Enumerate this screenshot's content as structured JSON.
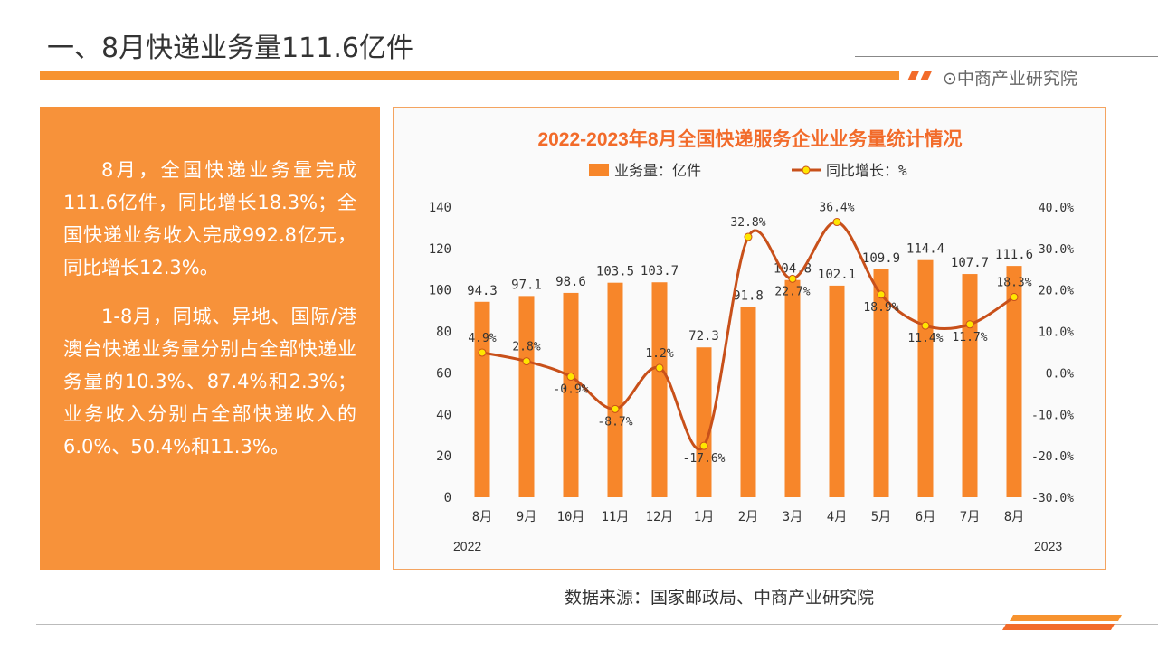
{
  "header": {
    "title": "一、8月快递业务量111.6亿件",
    "brand": "⊙中商产业研究院"
  },
  "summary": {
    "paragraphs": [
      "8月，全国快递业务量完成111.6亿件，同比增长18.3%；全国快递业务收入完成992.8亿元，同比增长12.3%。",
      "1-8月，同城、异地、国际/港澳台快递业务量分别占全部快递业务量的10.3%、87.4%和2.3%；业务收入分别占全部快递收入的6.0%、50.4%和11.3%。"
    ]
  },
  "source": "数据来源：国家邮政局、中商产业研究院",
  "colors": {
    "accent": "#F7932F",
    "bar": "#F7862A",
    "line": "#C8501A",
    "marker": "#FFE600",
    "title": "#F26B2A"
  },
  "chart_data": {
    "type": "bar+line",
    "title": "2022-2023年8月全国快递服务企业业务量统计情况",
    "categories": [
      "8月",
      "9月",
      "10月",
      "11月",
      "12月",
      "1月",
      "2月",
      "3月",
      "4月",
      "5月",
      "6月",
      "7月",
      "8月"
    ],
    "year_labels": [
      "2022",
      "2023"
    ],
    "series": [
      {
        "name": "业务量：亿件",
        "type": "bar",
        "axis": "left",
        "values": [
          94.3,
          97.1,
          98.6,
          103.5,
          103.7,
          72.3,
          91.8,
          104.8,
          102.1,
          109.9,
          114.4,
          107.7,
          111.6
        ]
      },
      {
        "name": "同比增长：%",
        "type": "line",
        "axis": "right",
        "values": [
          4.9,
          2.8,
          -0.9,
          -8.7,
          1.2,
          -17.6,
          32.8,
          22.7,
          36.4,
          18.9,
          11.4,
          11.7,
          18.3
        ]
      }
    ],
    "left_axis": {
      "ylim": [
        0,
        140
      ],
      "ticks": [
        "0",
        "20",
        "40",
        "60",
        "80",
        "100",
        "120",
        "140"
      ]
    },
    "right_axis": {
      "ylim": [
        -30,
        40
      ],
      "ticks": [
        "-30.0%",
        "-20.0%",
        "-10.0%",
        "0.0%",
        "10.0%",
        "20.0%",
        "30.0%",
        "40.0%"
      ]
    },
    "legend": "top"
  }
}
